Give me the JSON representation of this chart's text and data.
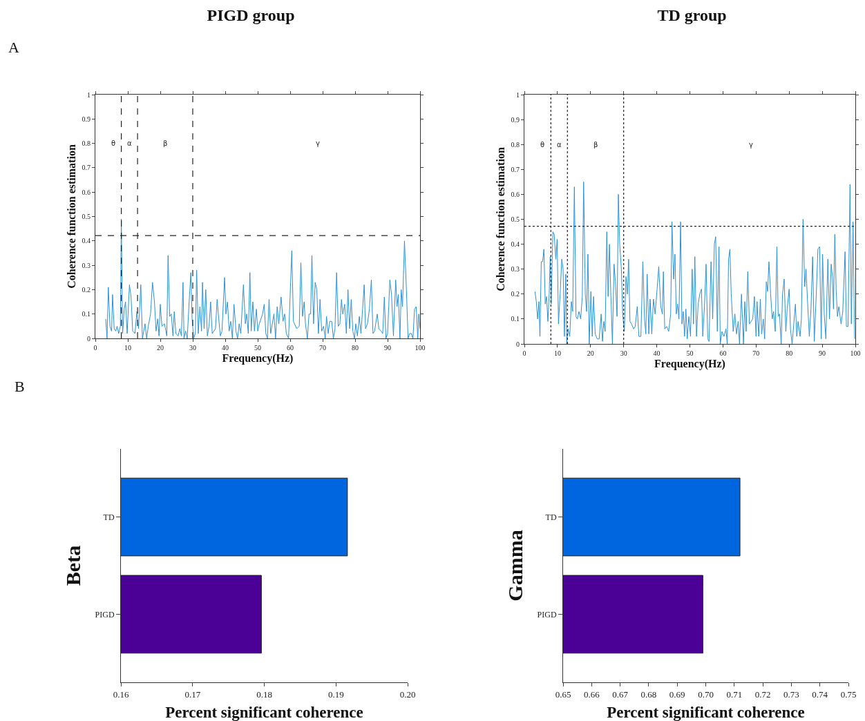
{
  "chart_data": [
    {
      "type": "line",
      "title": "PIGD group",
      "xlabel": "Frequency(Hz)",
      "ylabel": "Coherence function estimation",
      "xlim": [
        0,
        100
      ],
      "xticks": [
        0,
        10,
        20,
        30,
        40,
        50,
        60,
        70,
        80,
        90,
        100
      ],
      "ylim": [
        0,
        1
      ],
      "yticks": [
        0,
        0.1,
        0.2,
        0.3,
        0.4,
        0.5,
        0.6,
        0.7,
        0.8,
        0.9,
        1
      ],
      "grid": false,
      "marker": "none",
      "line_style": "solid",
      "annotations": [
        "A",
        "θ",
        "α",
        "β",
        "γ"
      ],
      "ref_lines": [
        {
          "axis": "x",
          "value": 8,
          "line_style": "dashed",
          "color": "#222222"
        },
        {
          "axis": "x",
          "value": 13,
          "line_style": "dashed",
          "color": "#222222"
        },
        {
          "axis": "x",
          "value": 30,
          "line_style": "dashed",
          "color": "#222222"
        },
        {
          "axis": "y",
          "value": 0.422,
          "line_style": "dashed",
          "color": "#222222"
        }
      ],
      "x": [
        3.2,
        3.6,
        4.0,
        4.5,
        5.0,
        5.3,
        5.8,
        6.3,
        6.7,
        7.2,
        7.7,
        8.0,
        8.4,
        8.9,
        9.3,
        9.8,
        10.5,
        11.0,
        11.5,
        12.2,
        12.8,
        13.3,
        14.0,
        14.5,
        15.3,
        15.8,
        16.3,
        17.0,
        17.6,
        18.2,
        18.7,
        19.2,
        19.6,
        20.0,
        20.5,
        21.3,
        22.0,
        22.4,
        22.9,
        23.4,
        23.9,
        24.3,
        24.8,
        25.5,
        26.0,
        26.5,
        27.0,
        27.3,
        27.8,
        28.3,
        28.8,
        29.4,
        29.8,
        30.3,
        30.8,
        31.2,
        31.7,
        32.2,
        32.7,
        33.0,
        33.5,
        34.0,
        34.5,
        35.0,
        35.5,
        36.0,
        37.0,
        37.5,
        38.0,
        38.5,
        39.0,
        39.8,
        40.2,
        40.7,
        41.2,
        41.7,
        42.2,
        42.7,
        43.3,
        43.8,
        44.3,
        44.8,
        45.6,
        46.2,
        46.6,
        47.1,
        47.6,
        48.0,
        48.5,
        49.0,
        49.6,
        50.0,
        50.5,
        51.5,
        52.0,
        52.5,
        53.0,
        53.5,
        54.0,
        55.0,
        55.5,
        56.0,
        56.5,
        57.2,
        57.8,
        58.3,
        58.8,
        59.5,
        60.5,
        61.0,
        62.0,
        62.8,
        63.3,
        63.8,
        64.3,
        64.7,
        65.3,
        65.8,
        66.3,
        66.7,
        67.2,
        67.7,
        68.2,
        68.7,
        69.2,
        69.7,
        70.3,
        70.8,
        71.2,
        71.7,
        72.2,
        72.8,
        73.3,
        73.8,
        74.3,
        74.8,
        75.3,
        75.8,
        76.2,
        76.8,
        77.3,
        77.8,
        78.3,
        78.8,
        79.3,
        79.8,
        80.2,
        80.7,
        81.3,
        81.8,
        82.3,
        82.8,
        83.2,
        83.8,
        84.4,
        85.0,
        85.5,
        86.0,
        86.8,
        87.3,
        88.0,
        88.5,
        89.0,
        89.5,
        90.0,
        90.7,
        91.2,
        91.8,
        92.5,
        92.9,
        93.3,
        93.8,
        94.2,
        94.6,
        95.2,
        95.8,
        96.3,
        96.8,
        97.3,
        97.8,
        98.3,
        98.8,
        99.3,
        99.6,
        100
      ],
      "series": [
        {
          "color": "#2b92d6",
          "values": [
            0.08,
            0.0,
            0.21,
            0.05,
            0.03,
            0.18,
            0.04,
            0.03,
            0.05,
            0.02,
            0.05,
            0.49,
            0.02,
            0.12,
            0.15,
            0.02,
            0.22,
            0.17,
            0.03,
            0.02,
            0.11,
            0.04,
            0.22,
            0.0,
            0.06,
            0.0,
            0.05,
            0.1,
            0.23,
            0.15,
            0.03,
            0.08,
            0.01,
            0.14,
            0.05,
            0.06,
            0.01,
            0.34,
            0.09,
            0.1,
            0.01,
            0.11,
            0.02,
            0.01,
            0.04,
            0.01,
            0.23,
            0.0,
            0.03,
            0.0,
            0.13,
            0.27,
            0.08,
            0.0,
            0.02,
            0.28,
            0.02,
            0.13,
            0.03,
            0.23,
            0.04,
            0.2,
            0.01,
            0.05,
            0.15,
            0.02,
            0.04,
            0.16,
            0.08,
            0.01,
            0.03,
            0.25,
            0.1,
            0.15,
            0.03,
            0.07,
            0.0,
            0.14,
            0.03,
            0.0,
            0.06,
            0.02,
            0.22,
            0.06,
            0.1,
            0.02,
            0.27,
            0.03,
            0.15,
            0.03,
            0.12,
            0.03,
            0.06,
            0.1,
            0.14,
            0.02,
            0.0,
            0.16,
            0.02,
            0.1,
            0.0,
            0.13,
            0.06,
            0.17,
            0.07,
            0.1,
            0.02,
            0.0,
            0.36,
            0.07,
            0.04,
            0.05,
            0.31,
            0.09,
            0.15,
            0.06,
            0.0,
            0.1,
            0.1,
            0.34,
            0.06,
            0.23,
            0.2,
            0.02,
            0.16,
            0.03,
            0.05,
            0.0,
            0.09,
            0.02,
            0.07,
            0.07,
            0.0,
            0.04,
            0.27,
            0.05,
            0.06,
            0.16,
            0.1,
            0.14,
            0.02,
            0.2,
            0.04,
            0.16,
            0.03,
            0.0,
            0.06,
            0.01,
            0.09,
            0.02,
            0.12,
            0.22,
            0.04,
            0.06,
            0.12,
            0.24,
            0.02,
            0.03,
            0.1,
            0.04,
            0.03,
            0.02,
            0.17,
            0.0,
            0.02,
            0.24,
            0.18,
            0.01,
            0.24,
            0.13,
            0.18,
            0.0,
            0.2,
            0.13,
            0.4,
            0.2,
            0.0,
            0.02,
            0.02,
            0.0,
            0.12,
            0.13,
            0.0,
            0.1,
            0.04
          ]
        }
      ]
    },
    {
      "type": "line",
      "title": "TD group",
      "xlabel": "Frequency(Hz)",
      "ylabel": "Coherence function estimation",
      "xlim": [
        0,
        100
      ],
      "xticks": [
        0,
        10,
        20,
        30,
        40,
        50,
        60,
        70,
        80,
        90,
        100
      ],
      "ylim": [
        0,
        1
      ],
      "yticks": [
        0,
        0.1,
        0.2,
        0.3,
        0.4,
        0.5,
        0.6,
        0.7,
        0.8,
        0.9,
        1
      ],
      "grid": false,
      "marker": "none",
      "line_style": "solid",
      "annotations": [
        "θ",
        "α",
        "β",
        "γ"
      ],
      "ref_lines": [
        {
          "axis": "x",
          "value": 8,
          "line_style": "dotted",
          "color": "#222222"
        },
        {
          "axis": "x",
          "value": 13,
          "line_style": "dotted",
          "color": "#222222"
        },
        {
          "axis": "x",
          "value": 30,
          "line_style": "dotted",
          "color": "#222222"
        },
        {
          "axis": "y",
          "value": 0.472,
          "line_style": "dotted",
          "color": "#222222"
        }
      ],
      "x": [
        3.2,
        3.6,
        4.0,
        4.4,
        4.7,
        5.1,
        5.5,
        5.9,
        6.3,
        6.7,
        7.1,
        7.5,
        7.8,
        8.1,
        8.6,
        9.0,
        9.5,
        9.9,
        10.3,
        10.8,
        11.3,
        11.7,
        12.1,
        12.5,
        12.8,
        13.2,
        13.7,
        14.2,
        14.6,
        15.1,
        15.6,
        16.0,
        16.5,
        17.0,
        17.5,
        17.9,
        18.4,
        18.8,
        19.2,
        19.6,
        20.1,
        20.5,
        20.9,
        21.4,
        22.0,
        22.6,
        23.2,
        23.6,
        24.0,
        24.4,
        24.9,
        25.3,
        25.7,
        26.1,
        26.6,
        27.1,
        27.5,
        28.0,
        28.4,
        28.8,
        29.3,
        29.7,
        30.2,
        30.7,
        31.1,
        31.5,
        31.9,
        32.4,
        33.0,
        33.5,
        34.1,
        34.6,
        35.2,
        35.8,
        36.3,
        36.7,
        37.1,
        37.6,
        38.0,
        38.5,
        39.0,
        39.5,
        40.1,
        40.6,
        41.2,
        41.7,
        42.0,
        42.4,
        43.0,
        43.6,
        44.2,
        44.6,
        45.1,
        45.5,
        45.9,
        46.3,
        46.7,
        47.2,
        47.6,
        48.0,
        48.4,
        48.8,
        49.2,
        49.7,
        50.2,
        50.7,
        51.1,
        51.5,
        52.0,
        52.5,
        53.0,
        53.5,
        53.9,
        54.4,
        54.9,
        55.4,
        55.8,
        56.4,
        56.9,
        57.4,
        57.8,
        58.3,
        58.8,
        59.2,
        59.7,
        60.3,
        60.9,
        61.3,
        61.7,
        62.1,
        62.5,
        63.1,
        63.6,
        64.1,
        64.6,
        65.0,
        65.6,
        66.2,
        66.6,
        67.0,
        67.5,
        68.0,
        68.5,
        69.0,
        69.5,
        70.0,
        70.3,
        70.8,
        71.3,
        71.7,
        72.2,
        72.6,
        73.1,
        73.5,
        73.9,
        74.4,
        74.9,
        75.3,
        75.8,
        76.3,
        76.7,
        77.1,
        77.6,
        78.0,
        78.5,
        79.0,
        79.4,
        80.0,
        80.4,
        80.9,
        81.4,
        81.9,
        82.3,
        82.7,
        83.3,
        83.7,
        84.2,
        84.7,
        85.1,
        85.6,
        86.1,
        86.6,
        87.1,
        87.6,
        88.2,
        88.7,
        89.2,
        89.7,
        90.1,
        90.6,
        91.1,
        91.7,
        92.2,
        92.7,
        93.1,
        93.4,
        93.8,
        94.2,
        94.6,
        95.0,
        95.7,
        96.2,
        96.9,
        97.3,
        97.8,
        98.4,
        98.8,
        99.3,
        99.8
      ],
      "series": [
        {
          "color": "#2b92d6",
          "values": [
            0.21,
            0.17,
            0.1,
            0.17,
            0.03,
            0.33,
            0.33,
            0.38,
            0.16,
            0.19,
            0.09,
            0.2,
            0.35,
            0.16,
            0.45,
            0.44,
            0.34,
            0.42,
            0.08,
            0.2,
            0.34,
            0.3,
            0.03,
            0.28,
            0.0,
            0.06,
            0.03,
            0.17,
            0.13,
            0.63,
            0.11,
            0.1,
            0.13,
            0.1,
            0.19,
            0.65,
            0.2,
            0.13,
            0.36,
            0.0,
            0.21,
            0.03,
            0.19,
            0.04,
            0.02,
            0.02,
            0.12,
            0.01,
            0.09,
            0.05,
            0.45,
            0.19,
            0.4,
            0.21,
            0.0,
            0.32,
            0.25,
            0.11,
            0.6,
            0.4,
            0.3,
            0.12,
            0.05,
            0.27,
            0.2,
            0.34,
            0.09,
            0.08,
            0.06,
            0.07,
            0.15,
            0.03,
            0.03,
            0.33,
            0.1,
            0.04,
            0.28,
            0.04,
            0.18,
            0.04,
            0.18,
            0.12,
            0.22,
            0.31,
            0.15,
            0.12,
            0.29,
            0.06,
            0.07,
            0.05,
            0.12,
            0.49,
            0.26,
            0.36,
            0.12,
            0.16,
            0.1,
            0.49,
            0.08,
            0.13,
            0.03,
            0.14,
            0.02,
            0.11,
            0.03,
            0.3,
            0.08,
            0.35,
            0.03,
            0.16,
            0.2,
            0.22,
            0.03,
            0.15,
            0.32,
            0.02,
            0.01,
            0.33,
            0.1,
            0.4,
            0.43,
            0.05,
            0.39,
            0.0,
            0.05,
            0.03,
            0.06,
            0.0,
            0.34,
            0.38,
            0.2,
            0.05,
            0.12,
            0.04,
            0.09,
            0.0,
            0.2,
            0.0,
            0.17,
            0.05,
            0.29,
            0.08,
            0.09,
            0.1,
            0.19,
            0.03,
            0.17,
            0.03,
            0.18,
            0.04,
            0.1,
            0.02,
            0.25,
            0.21,
            0.33,
            0.2,
            0.1,
            0.13,
            0.05,
            0.39,
            0.11,
            0.12,
            0.0,
            0.2,
            0.26,
            0.05,
            0.14,
            0.22,
            0.06,
            0.0,
            0.08,
            0.16,
            0.03,
            0.09,
            0.03,
            0.1,
            0.5,
            0.23,
            0.3,
            0.16,
            0.03,
            0.14,
            0.35,
            0.01,
            0.2,
            0.38,
            0.39,
            0.02,
            0.36,
            0.12,
            0.02,
            0.34,
            0.1,
            0.32,
            0.27,
            0.14,
            0.44,
            0.22,
            0.11,
            0.15,
            0.08,
            0.13,
            0.37,
            0.07,
            0.07,
            0.64,
            0.08,
            0.49,
            0.02
          ]
        }
      ]
    },
    {
      "type": "bar",
      "orientation": "horizontal",
      "xlabel": "Percent significant coherence",
      "ylabel": "Beta",
      "categories": [
        "TD",
        "PIGD"
      ],
      "values": [
        0.1916,
        0.1796
      ],
      "colors": [
        "#0066e0",
        "#4b0096"
      ],
      "xlim": [
        0.16,
        0.2
      ],
      "xticks": [
        0.16,
        0.17,
        0.18,
        0.19,
        {
          "value": 0.2,
          "label": "0.20"
        }
      ],
      "grid": false,
      "annotations": [
        "B"
      ]
    },
    {
      "type": "bar",
      "orientation": "horizontal",
      "xlabel": "Percent significant coherence",
      "ylabel": "Gamma",
      "categories": [
        "TD",
        "PIGD"
      ],
      "values": [
        0.712,
        0.699
      ],
      "colors": [
        "#0066e0",
        "#4b0096"
      ],
      "xlim": [
        0.65,
        0.75
      ],
      "xticks": [
        0.65,
        0.66,
        0.67,
        0.68,
        0.69,
        {
          "value": 0.7,
          "label": "0.70"
        },
        0.71,
        0.72,
        0.73,
        0.74,
        0.75
      ],
      "grid": false
    }
  ]
}
